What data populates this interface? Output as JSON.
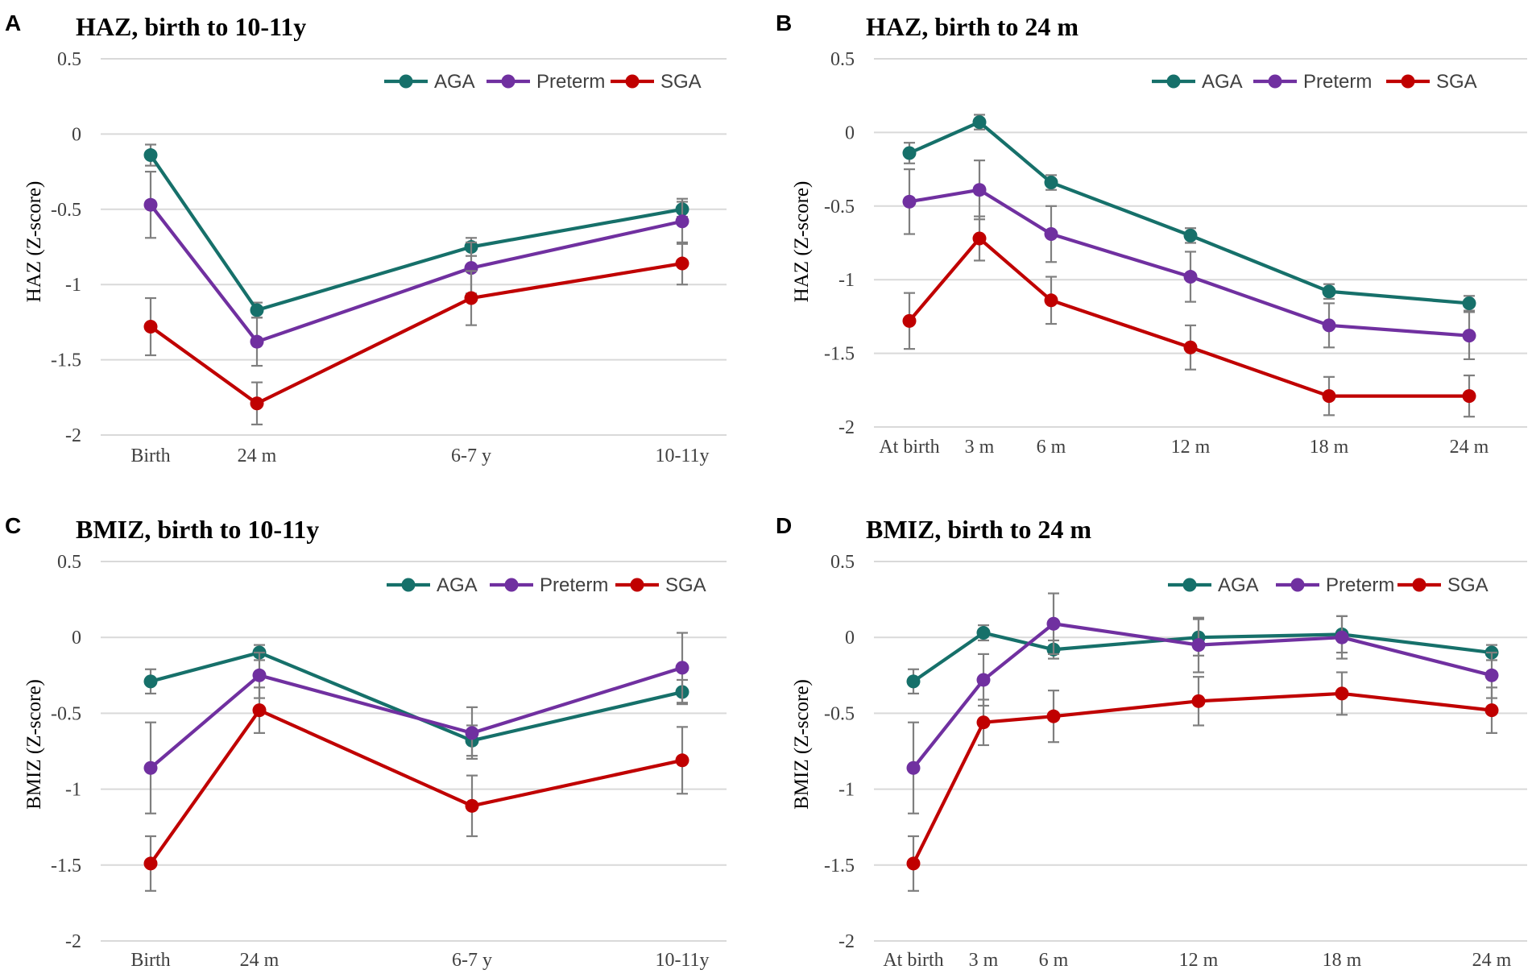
{
  "chart_data": [
    {
      "type": "line",
      "letter": "A",
      "title": "HAZ, birth to 10-11y",
      "ylabel": "HAZ (Z-score)",
      "xlabel": "",
      "ylim": [
        -2,
        0.5
      ],
      "yticks": [
        "0.5",
        "0",
        "-0.5",
        "-1",
        "-1.5",
        "-2"
      ],
      "ytick_values": [
        0.5,
        0,
        -0.5,
        -1,
        -1.5,
        -2
      ],
      "categories": [
        "Birth",
        "24 m",
        "6-7 y",
        "10-11y"
      ],
      "x": [
        0,
        24,
        78,
        126
      ],
      "grid": true,
      "legend": "top-right",
      "series": [
        {
          "name": "AGA",
          "color": "#16706a",
          "values": [
            -0.14,
            -1.17,
            -0.75,
            -0.5
          ],
          "err": [
            0.07,
            0.05,
            0.06,
            0.05
          ]
        },
        {
          "name": "Preterm",
          "color": "#7030a0",
          "values": [
            -0.47,
            -1.38,
            -0.89,
            -0.58
          ],
          "err": [
            0.22,
            0.16,
            0.17,
            0.15
          ]
        },
        {
          "name": "SGA",
          "color": "#c00000",
          "values": [
            -1.28,
            -1.79,
            -1.09,
            -0.86
          ],
          "err": [
            0.19,
            0.14,
            0.18,
            0.14
          ]
        }
      ]
    },
    {
      "type": "line",
      "letter": "B",
      "title": "HAZ, birth to 24 m",
      "ylabel": "HAZ (Z-score)",
      "xlabel": "",
      "ylim": [
        -2,
        0.5
      ],
      "yticks": [
        "0.5",
        "0",
        "-0.5",
        "-1",
        "-1.5",
        "-2"
      ],
      "ytick_values": [
        0.5,
        0,
        -0.5,
        -1,
        -1.5,
        -2
      ],
      "categories": [
        "At birth",
        "3 m",
        "6 m",
        "12 m",
        "18 m",
        "24 m"
      ],
      "x": [
        0,
        3,
        6,
        12,
        18,
        24
      ],
      "grid": true,
      "legend": "top-right",
      "series": [
        {
          "name": "AGA",
          "color": "#16706a",
          "values": [
            -0.14,
            0.07,
            -0.34,
            -0.7,
            -1.08,
            -1.16
          ],
          "err": [
            0.07,
            0.05,
            0.05,
            0.05,
            0.05,
            0.05
          ]
        },
        {
          "name": "Preterm",
          "color": "#7030a0",
          "values": [
            -0.47,
            -0.39,
            -0.69,
            -0.98,
            -1.31,
            -1.38
          ],
          "err": [
            0.22,
            0.2,
            0.19,
            0.17,
            0.15,
            0.16
          ]
        },
        {
          "name": "SGA",
          "color": "#c00000",
          "values": [
            -1.28,
            -0.72,
            -1.14,
            -1.46,
            -1.79,
            -1.79
          ],
          "err": [
            0.19,
            0.15,
            0.16,
            0.15,
            0.13,
            0.14
          ]
        }
      ]
    },
    {
      "type": "line",
      "letter": "C",
      "title": "BMIZ, birth to 10-11y",
      "ylabel": "BMIZ (Z-score)",
      "xlabel": "",
      "ylim": [
        -2,
        0.5
      ],
      "yticks": [
        "0.5",
        "0",
        "-0.5",
        "-1",
        "-1.5",
        "-2"
      ],
      "ytick_values": [
        0.5,
        0,
        -0.5,
        -1,
        -1.5,
        -2
      ],
      "categories": [
        "Birth",
        "24 m",
        "6-7 y",
        "10-11y"
      ],
      "x": [
        0,
        24,
        78,
        126
      ],
      "grid": true,
      "legend": "top-right",
      "series": [
        {
          "name": "AGA",
          "color": "#16706a",
          "values": [
            -0.29,
            -0.1,
            -0.68,
            -0.36
          ],
          "err": [
            0.08,
            0.05,
            0.1,
            0.08
          ]
        },
        {
          "name": "Preterm",
          "color": "#7030a0",
          "values": [
            -0.86,
            -0.25,
            -0.63,
            -0.2
          ],
          "err": [
            0.3,
            0.15,
            0.17,
            0.23
          ]
        },
        {
          "name": "SGA",
          "color": "#c00000",
          "values": [
            -1.49,
            -0.48,
            -1.11,
            -0.81
          ],
          "err": [
            0.18,
            0.15,
            0.2,
            0.22
          ]
        }
      ]
    },
    {
      "type": "line",
      "letter": "D",
      "title": "BMIZ, birth to 24 m",
      "ylabel": "BMIZ (Z-score)",
      "xlabel": "",
      "ylim": [
        -2,
        0.5
      ],
      "yticks": [
        "0.5",
        "0",
        "-0.5",
        "-1",
        "-1.5",
        "-2"
      ],
      "ytick_values": [
        0.5,
        0,
        -0.5,
        -1,
        -1.5,
        -2
      ],
      "categories": [
        "At birth",
        "3 m",
        "6 m",
        "12 m",
        "18 m",
        "24 m"
      ],
      "x": [
        0,
        3,
        6,
        12,
        18,
        24
      ],
      "grid": true,
      "legend": "top-right",
      "series": [
        {
          "name": "AGA",
          "color": "#16706a",
          "values": [
            -0.29,
            0.03,
            -0.08,
            0.0,
            0.02,
            -0.1
          ],
          "err": [
            0.08,
            0.05,
            0.06,
            0.12,
            0.12,
            0.05
          ]
        },
        {
          "name": "Preterm",
          "color": "#7030a0",
          "values": [
            -0.86,
            -0.28,
            0.09,
            -0.05,
            0.0,
            -0.25
          ],
          "err": [
            0.3,
            0.17,
            0.2,
            0.18,
            0.14,
            0.15
          ]
        },
        {
          "name": "SGA",
          "color": "#c00000",
          "values": [
            -1.49,
            -0.56,
            -0.52,
            -0.42,
            -0.37,
            -0.48
          ],
          "err": [
            0.18,
            0.15,
            0.17,
            0.16,
            0.14,
            0.15
          ]
        }
      ]
    }
  ]
}
